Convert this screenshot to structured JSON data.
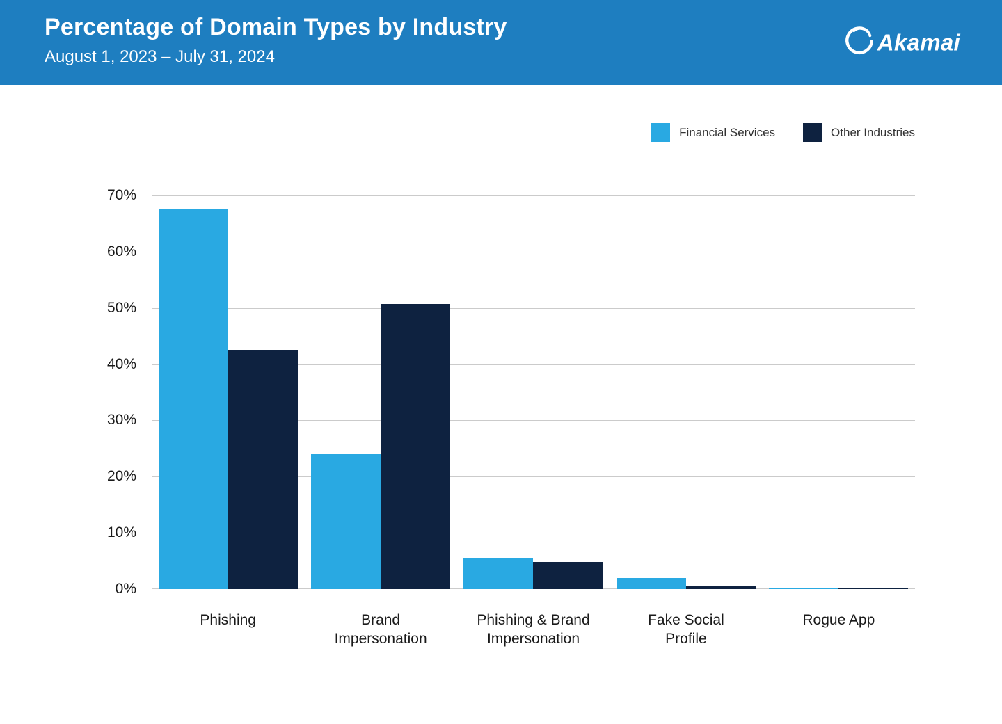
{
  "header": {
    "title": "Percentage of Domain Types by Industry",
    "subtitle": "August 1, 2023 – July 31, 2024",
    "logo_text": "Akamai"
  },
  "colors": {
    "header_bg": "#1E7EC0",
    "financial_services": "#29A9E2",
    "other_industries": "#0E2240",
    "grid": "#cbcbcb",
    "axis_text": "#1a1a1a"
  },
  "chart_data": {
    "type": "bar",
    "title": "Percentage of Domain Types by Industry",
    "subtitle": "August 1, 2023 – July 31, 2024",
    "categories": [
      "Phishing",
      "Brand\nImpersonation",
      "Phishing & Brand\nImpersonation",
      "Fake Social\nProfile",
      "Rogue App"
    ],
    "series": [
      {
        "name": "Financial Services",
        "color": "#29A9E2",
        "values": [
          67.5,
          24,
          5.5,
          2,
          0.1
        ]
      },
      {
        "name": "Other Industries",
        "color": "#0E2240",
        "values": [
          42.5,
          50.7,
          4.8,
          0.6,
          0.2
        ]
      }
    ],
    "xlabel": "",
    "ylabel": "",
    "ylim": [
      0,
      70
    ],
    "yticks": [
      0,
      10,
      20,
      30,
      40,
      50,
      60,
      70
    ],
    "ytick_suffix": "%",
    "grid": true,
    "legend_position": "top-right"
  }
}
